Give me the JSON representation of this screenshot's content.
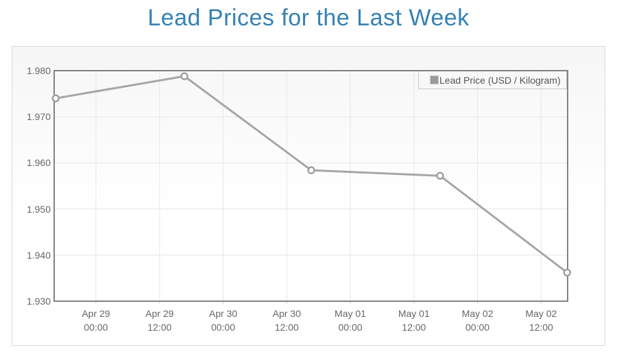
{
  "title": "Lead Prices for the Last Week",
  "legend": {
    "label": "Lead Price (USD / Kilogram)",
    "swatch_color": "#9a9a9a",
    "swatch_border_color": "#c9c9c9"
  },
  "chart_data": {
    "type": "line",
    "title": "Lead Prices for the Last Week",
    "xlabel": "",
    "ylabel": "",
    "ylim": [
      1.93,
      1.98
    ],
    "grid": true,
    "legend_position": "top-right",
    "series": [
      {
        "name": "Lead Price (USD / Kilogram)",
        "points": [
          {
            "x_frac": 0.003,
            "value": 1.974
          },
          {
            "x_frac": 0.2536,
            "value": 1.9788
          },
          {
            "x_frac": 0.5007,
            "value": 1.9584
          },
          {
            "x_frac": 0.7515,
            "value": 1.9572
          },
          {
            "x_frac": 0.999,
            "value": 1.9362
          }
        ]
      }
    ],
    "y_ticks": [
      {
        "value": 1.93,
        "label": "1.930"
      },
      {
        "value": 1.94,
        "label": "1.940"
      },
      {
        "value": 1.95,
        "label": "1.950"
      },
      {
        "value": 1.96,
        "label": "1.960"
      },
      {
        "value": 1.97,
        "label": "1.970"
      },
      {
        "value": 1.98,
        "label": "1.980"
      }
    ],
    "x_ticks": [
      {
        "frac": 0.0814,
        "line1": "Apr 29",
        "line2": "00:00"
      },
      {
        "frac": 0.2053,
        "line1": "Apr 29",
        "line2": "12:00"
      },
      {
        "frac": 0.3291,
        "line1": "Apr 30",
        "line2": "00:00"
      },
      {
        "frac": 0.453,
        "line1": "Apr 30",
        "line2": "12:00"
      },
      {
        "frac": 0.5768,
        "line1": "May 01",
        "line2": "00:00"
      },
      {
        "frac": 0.7007,
        "line1": "May 01",
        "line2": "12:00"
      },
      {
        "frac": 0.8245,
        "line1": "May 02",
        "line2": "00:00"
      },
      {
        "frac": 0.9484,
        "line1": "May 02",
        "line2": "12:00"
      }
    ],
    "colors": {
      "title": "#3581b5",
      "line": "#a6a6a6",
      "marker_fill": "#ffffff",
      "marker_stroke": "#9e9e9e",
      "grid": "#e7e7e7",
      "axis_border": "#828282",
      "tick": "#d0d0d0",
      "label": "#666666"
    }
  }
}
